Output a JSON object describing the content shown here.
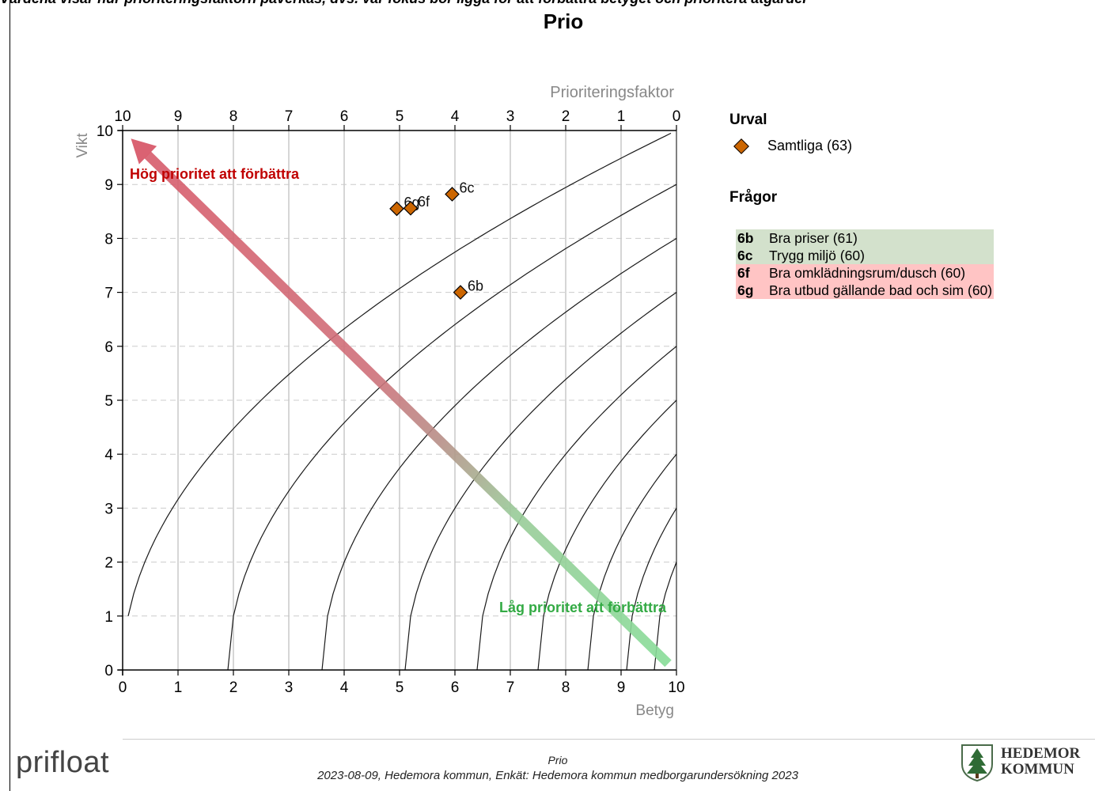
{
  "top_strip": "Värdena visar hur prioriteringsfaktorn påverkas, dvs. var fokus bör ligga för att förbättra betyget och prioritera åtgärder",
  "title": "Prio",
  "legend": {
    "urval_heading": "Urval",
    "urval_item": "Samtliga (63)",
    "fragor_heading": "Frågor",
    "questions": [
      {
        "code": "6b",
        "label": "Bra priser (61)",
        "bg": "#d3e1cc",
        "code_color": "#000000"
      },
      {
        "code": "6c",
        "label": "Trygg miljö (60)",
        "bg": "#d3e1cc",
        "code_color": "#000000"
      },
      {
        "code": "6f",
        "label": "Bra omklädningsrum/dusch (60)",
        "bg": "#ffc4c4",
        "code_color": "#000000"
      },
      {
        "code": "6g",
        "label": "Bra utbud gällande bad och sim (60)",
        "bg": "#ffc4c4",
        "code_color": "#000000"
      }
    ]
  },
  "footer": {
    "brand": "prifloat",
    "line1": "Prio",
    "line2": "2023-08-09, Hedemora kommun, Enkät: Hedemora kommun medborgarundersökning 2023",
    "logo_line1": "HEDEMOR",
    "logo_line2": "KOMMUN"
  },
  "chart_data": {
    "type": "scatter",
    "title": "Prio",
    "xlabel": "Betyg",
    "ylabel": "Vikt",
    "top_axis_label": "Prioriteringsfaktor",
    "xlim": [
      0,
      10
    ],
    "ylim": [
      0,
      10
    ],
    "x_ticks": [
      "0",
      "1",
      "2",
      "3",
      "4",
      "5",
      "6",
      "7",
      "8",
      "9",
      "10"
    ],
    "y_ticks": [
      "0",
      "1",
      "2",
      "3",
      "4",
      "5",
      "6",
      "7",
      "8",
      "9",
      "10"
    ],
    "top_ticks": [
      "10",
      "9",
      "8",
      "7",
      "6",
      "5",
      "4",
      "3",
      "2",
      "1",
      "0"
    ],
    "grid": true,
    "points": [
      {
        "label": "6b",
        "x": 6.1,
        "y": 7.0
      },
      {
        "label": "6c",
        "x": 5.95,
        "y": 8.82
      },
      {
        "label": "6f",
        "x": 5.2,
        "y": 8.56
      },
      {
        "label": "6g",
        "x": 4.95,
        "y": 8.55
      }
    ],
    "marker_color": "#cc6600",
    "annotations": {
      "high": "Hög prioritet att förbättra",
      "low": "Låg prioritet att förbättra",
      "high_color": "#c00000",
      "low_color": "#33aa44"
    }
  }
}
